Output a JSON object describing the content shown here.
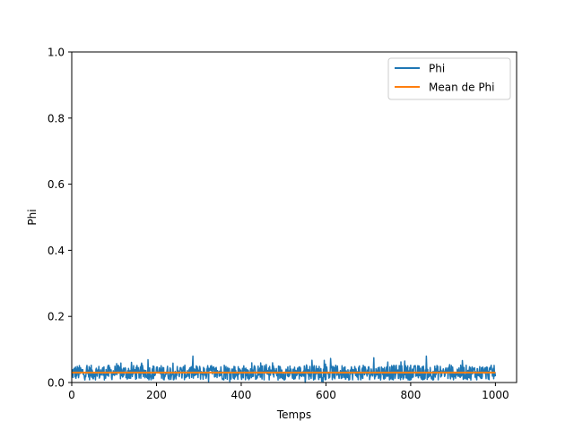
{
  "chart_data": {
    "type": "line",
    "xlabel": "Temps",
    "ylabel": "Phi",
    "xlim": [
      0,
      1050
    ],
    "ylim": [
      0,
      1.0
    ],
    "x_ticks": [
      0,
      200,
      400,
      600,
      800,
      1000
    ],
    "y_ticks": [
      0.0,
      0.2,
      0.4,
      0.6,
      0.8,
      1.0
    ],
    "x_tick_labels": [
      "0",
      "200",
      "400",
      "600",
      "800",
      "1000"
    ],
    "y_tick_labels": [
      "0.0",
      "0.2",
      "0.4",
      "0.6",
      "0.8",
      "1.0"
    ],
    "grid": false,
    "legend_position": "top-right",
    "series": [
      {
        "name": "Phi",
        "color": "#1f77b4",
        "style": "noisy time series",
        "x_range": [
          0,
          1000
        ],
        "approx_mean": 0.03,
        "approx_min": 0.0,
        "approx_max": 0.08
      },
      {
        "name": "Mean de Phi",
        "color": "#ff7f0e",
        "x": [
          0,
          1000
        ],
        "values": [
          0.03,
          0.03
        ]
      }
    ]
  }
}
